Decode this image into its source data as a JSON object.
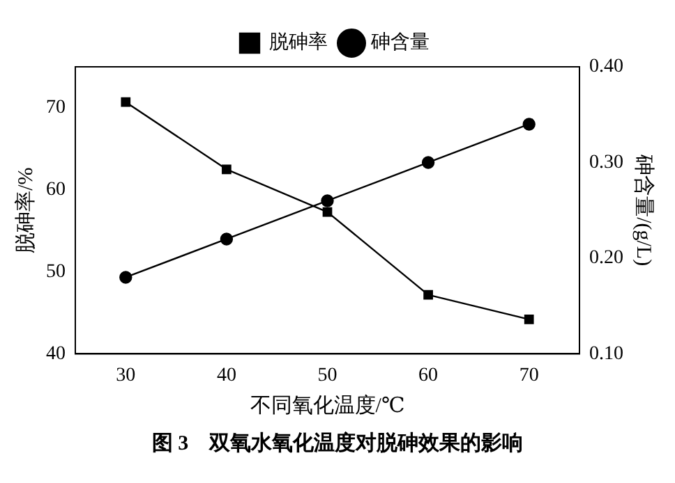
{
  "chart_data": {
    "type": "line",
    "title": "图 3　双氧水氧化温度对脱砷效果的影响",
    "xlabel": "不同氧化温度/℃",
    "ylabel": "脱砷率/%",
    "y2label": "砷含量/(g/L)",
    "x": [
      30,
      40,
      50,
      60,
      70
    ],
    "series": [
      {
        "name": "脱砷率",
        "color": "#000000",
        "marker": "square",
        "values": [
          70.7,
          62.5,
          57.3,
          47.2,
          44.2
        ]
      },
      {
        "name": "砷含量",
        "color": "#000000",
        "marker": "circle",
        "axis": "y2",
        "values": [
          0.18,
          0.22,
          0.26,
          0.3,
          0.34
        ]
      }
    ],
    "xlim": [
      25,
      75
    ],
    "xticks": [
      30,
      40,
      50,
      60,
      70
    ],
    "ylim": [
      40,
      75
    ],
    "yticks": [
      40,
      50,
      60,
      70
    ],
    "y2lim": [
      0.1,
      0.4
    ],
    "y2ticks": [
      {
        "value": 0.1,
        "label": "0.10"
      },
      {
        "value": 0.2,
        "label": "0.20"
      },
      {
        "value": 0.3,
        "label": "0.30"
      },
      {
        "value": 0.4,
        "label": "0.40"
      }
    ],
    "legend": "top",
    "grid": false,
    "line_style": "solid"
  }
}
